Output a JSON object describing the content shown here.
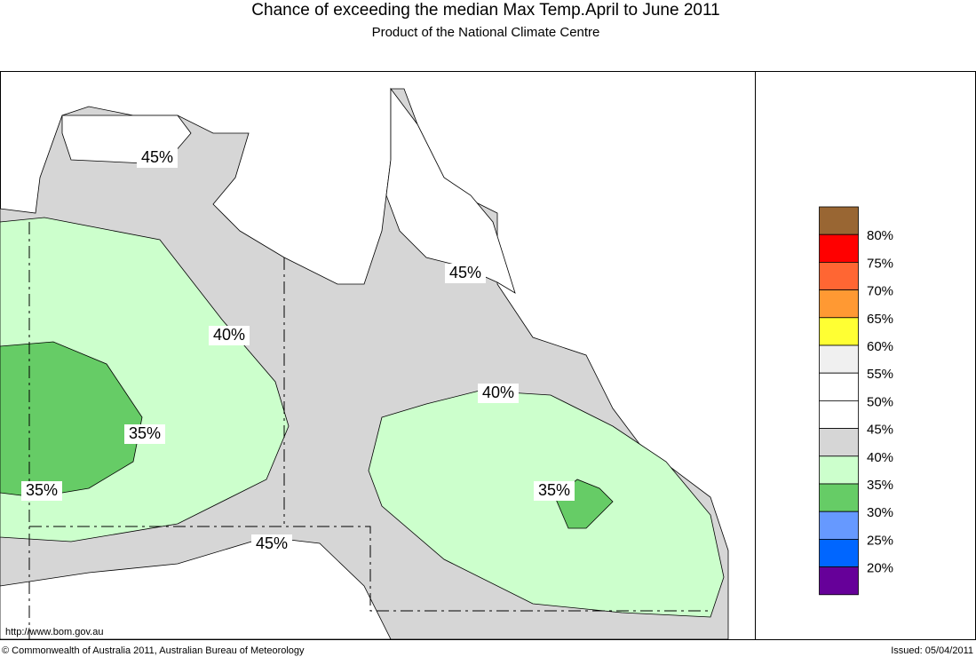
{
  "title": "Chance of exceeding the median Max Temp.April to June 2011",
  "subtitle": "Product of the National Climate Centre",
  "contour_labels": [
    "45%",
    "45%",
    "40%",
    "40%",
    "35%",
    "35%",
    "35%",
    "45%"
  ],
  "legend": {
    "colors": [
      "#996633",
      "#ff0000",
      "#ff6633",
      "#ff9933",
      "#ffff33",
      "#f0f0f0",
      "#ffffff",
      "#ffffff",
      "#d6d6d6",
      "#ccffcc",
      "#66cc66",
      "#6699ff",
      "#0066ff",
      "#660099"
    ],
    "labels": [
      "80%",
      "75%",
      "70%",
      "65%",
      "60%",
      "55%",
      "50%",
      "45%",
      "40%",
      "35%",
      "30%",
      "25%",
      "20%"
    ]
  },
  "url": "http://www.bom.gov.au",
  "copyright": "© Commonwealth of Australia 2011, Australian Bureau of Meteorology",
  "issued": "Issued: 05/04/2011"
}
